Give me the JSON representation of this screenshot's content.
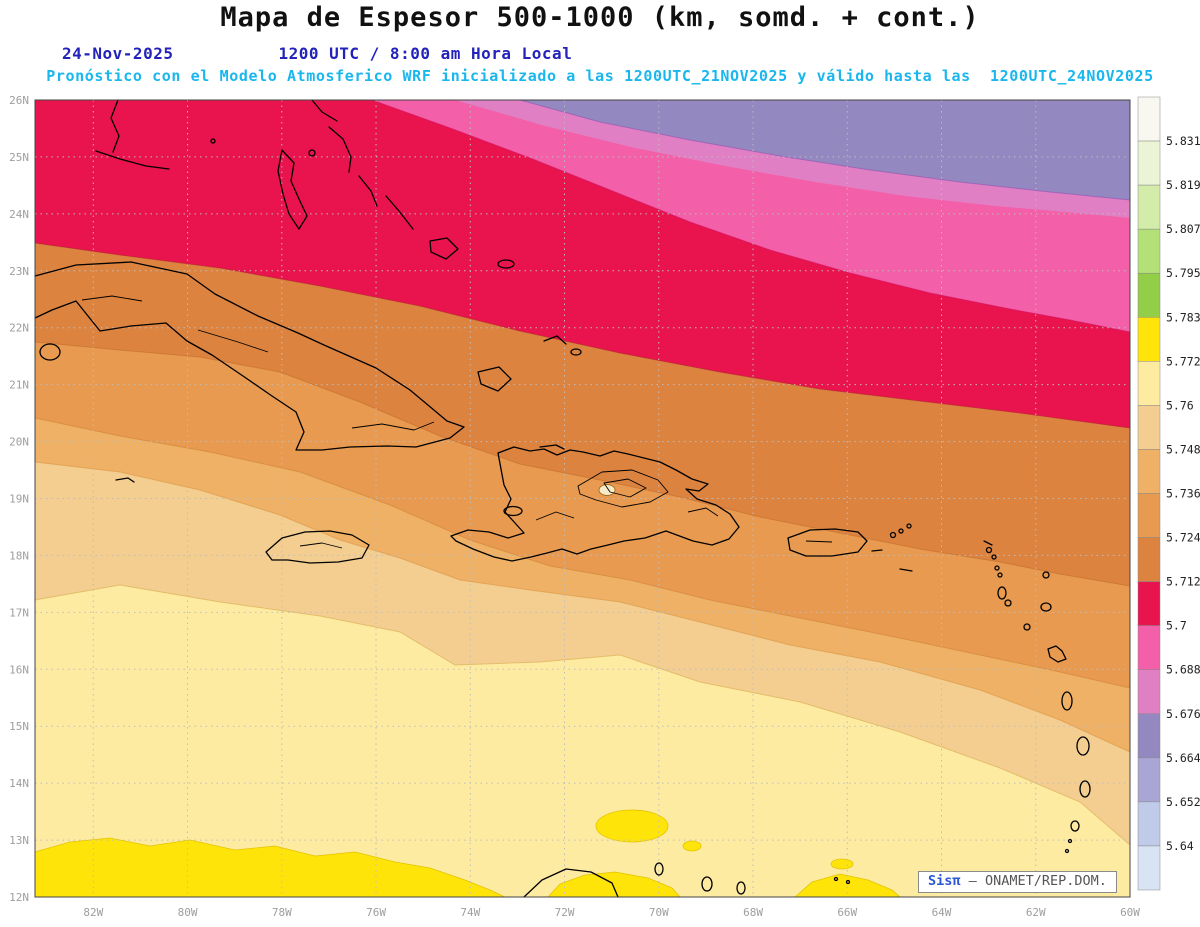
{
  "header": {
    "title": "Mapa de Espesor 500-1000 (km, somd. + cont.)",
    "date": "24-Nov-2025",
    "time": "1200 UTC / 8:00 am Hora Local",
    "forecast_line": "Pronóstico con el Modelo Atmosferico WRF inicializado a las 1200UTC_21NOV2025 y válido hasta las  1200UTC_24NOV2025"
  },
  "axes": {
    "lat_labels": [
      "26N",
      "25N",
      "24N",
      "23N",
      "22N",
      "21N",
      "20N",
      "19N",
      "18N",
      "17N",
      "16N",
      "15N",
      "14N",
      "13N",
      "12N"
    ],
    "lon_labels": [
      "82W",
      "80W",
      "78W",
      "76W",
      "74W",
      "72W",
      "70W",
      "68W",
      "66W",
      "64W",
      "62W",
      "60W"
    ]
  },
  "colorbar": {
    "labels": [
      "5.831",
      "5.819",
      "5.807",
      "5.795",
      "5.783",
      "5.772",
      "5.76",
      "5.748",
      "5.736",
      "5.724",
      "5.712",
      "5.7",
      "5.688",
      "5.676",
      "5.664",
      "5.652",
      "5.64"
    ],
    "cell_colors": [
      "#F8F8F0",
      "#EBF5D6",
      "#D3ECAA",
      "#B3E077",
      "#93CE49",
      "#FFE40A",
      "#FEEBA2",
      "#F3CE90",
      "#EFB165",
      "#E89A50",
      "#DD8340",
      "#E9134D",
      "#F35FA8",
      "#E07FC4",
      "#9488C0",
      "#A9A5D4",
      "#BFCBE9",
      "#D8E4F4"
    ]
  },
  "map_colors": {
    "purple": "#9488C0",
    "orchid": "#E07FC4",
    "pink": "#F35FA8",
    "red": "#E9134D",
    "dark_orange": "#DD8340",
    "orange": "#E89A50",
    "light_orange": "#EFB165",
    "tan": "#F3CE90",
    "pale_yellow": "#FEEBA2",
    "yellow": "#FFE40A",
    "coastline": "#000000",
    "grid": "#BDBDBD"
  },
  "credit": {
    "brand": "Sisπ",
    "separator": "–",
    "org": "ONAMET/REP.DOM."
  }
}
